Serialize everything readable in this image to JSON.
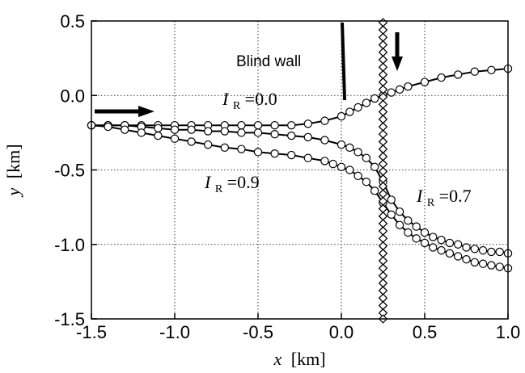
{
  "chart_data": {
    "type": "line",
    "title": "",
    "xlabel": {
      "var": "x",
      "unit": "[km]"
    },
    "ylabel": {
      "var": "y",
      "unit": "[km]"
    },
    "xlim": [
      -1.5,
      1.0
    ],
    "ylim": [
      -1.5,
      0.5
    ],
    "xticks": [
      -1.5,
      -1.0,
      -0.5,
      0.0,
      0.5,
      1.0
    ],
    "yticks": [
      -1.5,
      -1.0,
      -0.5,
      0.0,
      0.5
    ],
    "xtick_labels": [
      "-1.5",
      "-1.0",
      "-0.5",
      "0.0",
      "0.5",
      "1.0"
    ],
    "ytick_labels": [
      "-1.5",
      "-1.0",
      "-0.5",
      "0.0",
      "0.5"
    ],
    "grid": true,
    "series": [
      {
        "name": "I_R=0.0",
        "marker": "circle",
        "x": [
          -1.5,
          -1.4,
          -1.3,
          -1.2,
          -1.1,
          -1.0,
          -0.9,
          -0.8,
          -0.7,
          -0.6,
          -0.5,
          -0.4,
          -0.3,
          -0.2,
          -0.1,
          0.0,
          0.05,
          0.1,
          0.15,
          0.2,
          0.25,
          0.3,
          0.35,
          0.4,
          0.5,
          0.6,
          0.7,
          0.8,
          0.9,
          1.0
        ],
        "y": [
          -0.2,
          -0.2,
          -0.2,
          -0.2,
          -0.2,
          -0.2,
          -0.2,
          -0.2,
          -0.2,
          -0.2,
          -0.2,
          -0.2,
          -0.2,
          -0.19,
          -0.17,
          -0.14,
          -0.11,
          -0.08,
          -0.05,
          -0.02,
          0.0,
          0.02,
          0.04,
          0.06,
          0.09,
          0.12,
          0.14,
          0.16,
          0.17,
          0.18
        ]
      },
      {
        "name": "I_R=0.7",
        "marker": "circle",
        "x": [
          -1.5,
          -1.4,
          -1.3,
          -1.2,
          -1.1,
          -1.0,
          -0.9,
          -0.8,
          -0.7,
          -0.6,
          -0.5,
          -0.4,
          -0.3,
          -0.2,
          -0.1,
          0.0,
          0.05,
          0.1,
          0.15,
          0.2,
          0.25,
          0.3,
          0.35,
          0.4,
          0.45,
          0.5,
          0.55,
          0.6,
          0.65,
          0.7,
          0.75,
          0.8,
          0.85,
          0.9,
          0.95,
          1.0
        ],
        "y": [
          -0.2,
          -0.2,
          -0.2,
          -0.21,
          -0.22,
          -0.23,
          -0.23,
          -0.24,
          -0.24,
          -0.25,
          -0.25,
          -0.26,
          -0.27,
          -0.28,
          -0.3,
          -0.33,
          -0.35,
          -0.38,
          -0.42,
          -0.48,
          -0.58,
          -0.7,
          -0.78,
          -0.84,
          -0.88,
          -0.92,
          -0.95,
          -0.97,
          -0.99,
          -1.0,
          -1.02,
          -1.03,
          -1.04,
          -1.05,
          -1.05,
          -1.06
        ]
      },
      {
        "name": "I_R=0.9",
        "marker": "circle",
        "x": [
          -1.5,
          -1.4,
          -1.3,
          -1.2,
          -1.1,
          -1.0,
          -0.9,
          -0.8,
          -0.7,
          -0.6,
          -0.5,
          -0.4,
          -0.3,
          -0.2,
          -0.1,
          -0.05,
          0.0,
          0.05,
          0.1,
          0.15,
          0.2,
          0.25,
          0.3,
          0.35,
          0.4,
          0.45,
          0.5,
          0.55,
          0.6,
          0.65,
          0.7,
          0.75,
          0.8,
          0.85,
          0.9,
          0.95,
          1.0
        ],
        "y": [
          -0.2,
          -0.21,
          -0.23,
          -0.25,
          -0.27,
          -0.29,
          -0.31,
          -0.33,
          -0.35,
          -0.36,
          -0.38,
          -0.39,
          -0.4,
          -0.42,
          -0.44,
          -0.46,
          -0.48,
          -0.5,
          -0.54,
          -0.58,
          -0.64,
          -0.72,
          -0.8,
          -0.87,
          -0.92,
          -0.96,
          -0.99,
          -1.02,
          -1.04,
          -1.06,
          -1.08,
          -1.1,
          -1.12,
          -1.13,
          -1.14,
          -1.15,
          -1.16
        ]
      }
    ],
    "wall": {
      "x": 0.25,
      "ys": [
        0.49,
        0.44,
        0.39,
        0.34,
        0.29,
        0.24,
        0.19,
        0.14,
        0.09,
        0.04,
        -0.01,
        -0.06,
        -0.11,
        -0.16,
        -0.21,
        -0.26,
        -0.31,
        -0.36,
        -0.41,
        -0.46,
        -0.51,
        -0.56,
        -0.61,
        -0.66,
        -0.71,
        -0.76,
        -0.81,
        -0.86,
        -0.91,
        -0.96,
        -1.01,
        -1.06,
        -1.11,
        -1.16,
        -1.21,
        -1.26,
        -1.31,
        -1.36,
        -1.41,
        -1.46,
        -1.5
      ]
    },
    "annotations": {
      "blind_wall": "Blind wall",
      "label_00": {
        "var": "I",
        "sub": "R",
        "value": "=0.0"
      },
      "label_09": {
        "var": "I",
        "sub": "R",
        "value": "=0.9"
      },
      "label_07": {
        "var": "I",
        "sub": "R",
        "value": "=0.7"
      }
    }
  }
}
